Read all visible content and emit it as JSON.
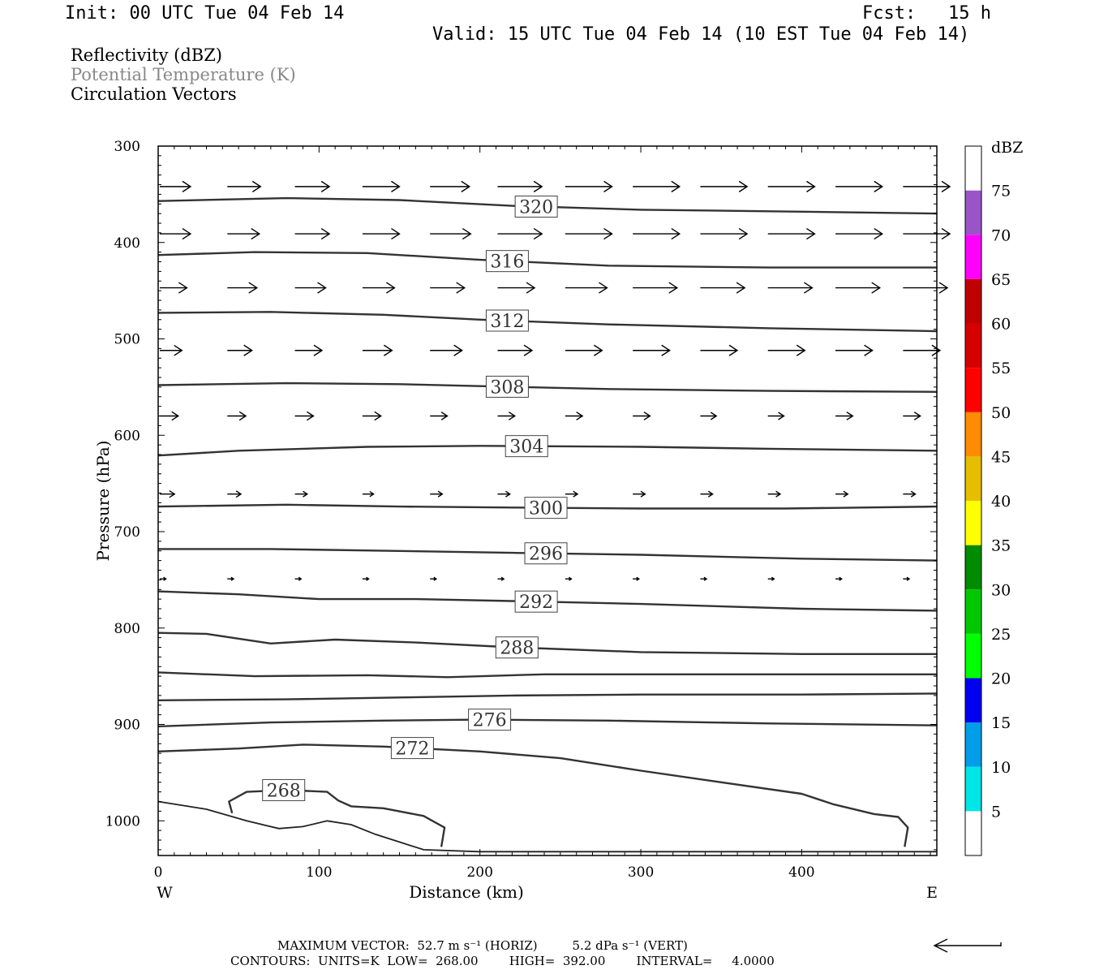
{
  "header": {
    "init": "Init: 00 UTC Tue 04 Feb 14",
    "fcst": "Fcst:   15 h",
    "valid": "Valid: 15 UTC Tue 04 Feb 14 (10 EST Tue 04 Feb 14)"
  },
  "titles": {
    "line1": "Reflectivity (dBZ)",
    "line2": "Potential Temperature (K)",
    "line3": "Circulation Vectors"
  },
  "footer": {
    "max_vector": "MAXIMUM VECTOR:  52.7 m s⁻¹ (HORIZ)         5.2 dPa s⁻¹ (VERT)",
    "contours": "CONTOURS:  UNITS=K  LOW=  268.00        HIGH=  392.00        INTERVAL=     4.0000"
  },
  "chart_data": {
    "type": "cross-section",
    "xlabel": "Distance (km)",
    "ylabel": "Pressure (hPa)",
    "xlim": [
      0,
      484
    ],
    "ylim": [
      1036,
      300
    ],
    "y_axis_inverted": true,
    "x_ticks": [
      0,
      100,
      200,
      300,
      400
    ],
    "y_ticks": [
      300,
      400,
      500,
      600,
      700,
      800,
      900,
      1000
    ],
    "x_end_labels": {
      "left": "W",
      "right": "E"
    },
    "colorbar": {
      "unit_label": "dBZ",
      "levels": [
        5,
        10,
        15,
        20,
        25,
        30,
        35,
        40,
        45,
        50,
        55,
        60,
        65,
        70,
        75
      ],
      "colors": [
        "#ffffff",
        "#00e5e5",
        "#009ee8",
        "#0000f0",
        "#00ff00",
        "#00c800",
        "#008c00",
        "#ffff00",
        "#e6be00",
        "#ff8c00",
        "#ff0000",
        "#d60000",
        "#c00000",
        "#ff00ff",
        "#9955c8",
        "#ffffff"
      ]
    },
    "theta_contours": [
      {
        "value": 320,
        "label": "320",
        "label_x": 235,
        "pts": [
          [
            0,
            357
          ],
          [
            80,
            354
          ],
          [
            150,
            356
          ],
          [
            220,
            362
          ],
          [
            300,
            366
          ],
          [
            400,
            368
          ],
          [
            484,
            370
          ]
        ]
      },
      {
        "value": 316,
        "label": "316",
        "label_x": 217,
        "pts": [
          [
            0,
            413
          ],
          [
            60,
            410
          ],
          [
            130,
            411
          ],
          [
            200,
            418
          ],
          [
            280,
            424
          ],
          [
            380,
            426
          ],
          [
            484,
            426
          ]
        ]
      },
      {
        "value": 312,
        "label": "312",
        "label_x": 217,
        "pts": [
          [
            0,
            473
          ],
          [
            70,
            472
          ],
          [
            140,
            475
          ],
          [
            200,
            480
          ],
          [
            280,
            485
          ],
          [
            380,
            489
          ],
          [
            484,
            492
          ]
        ]
      },
      {
        "value": 308,
        "label": "308",
        "label_x": 217,
        "pts": [
          [
            0,
            548
          ],
          [
            80,
            546
          ],
          [
            150,
            547
          ],
          [
            200,
            549
          ],
          [
            280,
            552
          ],
          [
            380,
            554
          ],
          [
            484,
            555
          ]
        ]
      },
      {
        "value": 304,
        "label": "304",
        "label_x": 229,
        "pts": [
          [
            0,
            621
          ],
          [
            50,
            616
          ],
          [
            130,
            612
          ],
          [
            200,
            611
          ],
          [
            300,
            612
          ],
          [
            380,
            614
          ],
          [
            484,
            616
          ]
        ]
      },
      {
        "value": 300,
        "label": "300",
        "label_x": 241,
        "pts": [
          [
            0,
            674
          ],
          [
            80,
            672
          ],
          [
            150,
            674
          ],
          [
            220,
            675
          ],
          [
            300,
            676
          ],
          [
            390,
            676
          ],
          [
            484,
            674
          ]
        ]
      },
      {
        "value": 296,
        "label": "296",
        "label_x": 241,
        "pts": [
          [
            0,
            718
          ],
          [
            70,
            718
          ],
          [
            150,
            720
          ],
          [
            220,
            722
          ],
          [
            300,
            724
          ],
          [
            400,
            728
          ],
          [
            484,
            730
          ]
        ]
      },
      {
        "value": 292,
        "label": "292",
        "label_x": 235,
        "pts": [
          [
            0,
            762
          ],
          [
            50,
            765
          ],
          [
            100,
            770
          ],
          [
            160,
            770
          ],
          [
            220,
            772
          ],
          [
            300,
            775
          ],
          [
            400,
            780
          ],
          [
            484,
            782
          ]
        ]
      },
      {
        "value": 288,
        "label": "288",
        "label_x": 223,
        "pts": [
          [
            0,
            805
          ],
          [
            30,
            806
          ],
          [
            70,
            816
          ],
          [
            110,
            812
          ],
          [
            160,
            815
          ],
          [
            220,
            820
          ],
          [
            300,
            825
          ],
          [
            400,
            827
          ],
          [
            484,
            827
          ]
        ]
      },
      {
        "value": 284,
        "label": "",
        "label_x": 0,
        "pts": [
          [
            0,
            846
          ],
          [
            60,
            850
          ],
          [
            130,
            849
          ],
          [
            180,
            851
          ],
          [
            240,
            848
          ],
          [
            320,
            848
          ],
          [
            400,
            848
          ],
          [
            484,
            848
          ]
        ]
      },
      {
        "value": 280,
        "label": "",
        "label_x": 0,
        "pts": [
          [
            0,
            875
          ],
          [
            80,
            874
          ],
          [
            150,
            872
          ],
          [
            220,
            870
          ],
          [
            300,
            869
          ],
          [
            400,
            869
          ],
          [
            484,
            868
          ]
        ]
      },
      {
        "value": 276,
        "label": "276",
        "label_x": 206,
        "pts": [
          [
            0,
            902
          ],
          [
            70,
            898
          ],
          [
            140,
            896
          ],
          [
            200,
            895
          ],
          [
            280,
            896
          ],
          [
            380,
            899
          ],
          [
            484,
            901
          ]
        ]
      },
      {
        "value": 272,
        "label": "272",
        "label_x": 158,
        "pts": [
          [
            0,
            928
          ],
          [
            50,
            925
          ],
          [
            90,
            921
          ],
          [
            140,
            923
          ],
          [
            200,
            928
          ],
          [
            250,
            935
          ],
          [
            300,
            948
          ],
          [
            350,
            960
          ],
          [
            400,
            972
          ],
          [
            420,
            983
          ],
          [
            445,
            993
          ],
          [
            460,
            996
          ],
          [
            466,
            1007
          ],
          [
            464,
            1027
          ]
        ]
      },
      {
        "value": 268,
        "label": "268",
        "label_x": 78,
        "pts": [
          [
            46,
            992
          ],
          [
            44,
            980
          ],
          [
            55,
            970
          ],
          [
            80,
            968
          ],
          [
            105,
            970
          ],
          [
            112,
            979
          ],
          [
            120,
            985
          ],
          [
            140,
            987
          ],
          [
            165,
            995
          ],
          [
            178,
            1007
          ],
          [
            176,
            1027
          ]
        ]
      }
    ],
    "ground_line": {
      "pts": [
        [
          0,
          980
        ],
        [
          30,
          988
        ],
        [
          55,
          1000
        ],
        [
          75,
          1008
        ],
        [
          90,
          1006
        ],
        [
          105,
          1000
        ],
        [
          120,
          1004
        ],
        [
          135,
          1014
        ],
        [
          150,
          1022
        ],
        [
          165,
          1030
        ],
        [
          200,
          1032
        ],
        [
          300,
          1032
        ],
        [
          400,
          1032
        ],
        [
          484,
          1032
        ]
      ]
    },
    "vector_max_horiz_ms": 52.7,
    "vector_max_vert_dpas": 5.2,
    "vectors": [
      {
        "y": 342,
        "rows": [
          [
            0,
            25
          ],
          [
            42,
            27
          ],
          [
            84,
            28
          ],
          [
            126,
            30
          ],
          [
            168,
            32
          ],
          [
            210,
            36
          ],
          [
            252,
            38
          ],
          [
            294,
            38
          ],
          [
            336,
            38
          ],
          [
            378,
            38
          ],
          [
            420,
            38
          ],
          [
            462,
            38
          ]
        ]
      },
      {
        "y": 391,
        "rows": [
          [
            0,
            25
          ],
          [
            42,
            26
          ],
          [
            84,
            28
          ],
          [
            126,
            30
          ],
          [
            168,
            33
          ],
          [
            210,
            36
          ],
          [
            252,
            38
          ],
          [
            294,
            38
          ],
          [
            336,
            38
          ],
          [
            378,
            38
          ],
          [
            420,
            38
          ],
          [
            462,
            38
          ]
        ]
      },
      {
        "y": 447,
        "rows": [
          [
            0,
            22
          ],
          [
            42,
            24
          ],
          [
            84,
            25
          ],
          [
            126,
            26
          ],
          [
            168,
            28
          ],
          [
            210,
            30
          ],
          [
            252,
            34
          ],
          [
            294,
            36
          ],
          [
            336,
            36
          ],
          [
            378,
            36
          ],
          [
            420,
            36
          ],
          [
            462,
            36
          ]
        ]
      },
      {
        "y": 512,
        "rows": [
          [
            0,
            18
          ],
          [
            42,
            20
          ],
          [
            84,
            22
          ],
          [
            126,
            24
          ],
          [
            168,
            26
          ],
          [
            210,
            28
          ],
          [
            252,
            30
          ],
          [
            294,
            30
          ],
          [
            336,
            30
          ],
          [
            378,
            30
          ],
          [
            420,
            30
          ],
          [
            462,
            30
          ]
        ]
      },
      {
        "y": 580,
        "rows": [
          [
            0,
            15
          ],
          [
            42,
            15
          ],
          [
            84,
            15
          ],
          [
            126,
            15
          ],
          [
            168,
            14
          ],
          [
            210,
            14
          ],
          [
            252,
            14
          ],
          [
            294,
            14
          ],
          [
            336,
            13
          ],
          [
            378,
            13
          ],
          [
            420,
            14
          ],
          [
            462,
            14
          ]
        ]
      },
      {
        "y": 661,
        "rows": [
          [
            0,
            12
          ],
          [
            42,
            11
          ],
          [
            84,
            10
          ],
          [
            126,
            9
          ],
          [
            168,
            10
          ],
          [
            210,
            10
          ],
          [
            252,
            10
          ],
          [
            294,
            10
          ],
          [
            336,
            10
          ],
          [
            378,
            10
          ],
          [
            420,
            10
          ],
          [
            462,
            10
          ]
        ]
      },
      {
        "y": 749,
        "rows": [
          [
            0,
            5
          ],
          [
            42,
            5
          ],
          [
            84,
            5
          ],
          [
            126,
            5
          ],
          [
            168,
            5
          ],
          [
            210,
            5
          ],
          [
            252,
            5
          ],
          [
            294,
            5
          ],
          [
            336,
            5
          ],
          [
            378,
            5
          ],
          [
            420,
            5
          ],
          [
            462,
            5
          ]
        ]
      }
    ]
  }
}
